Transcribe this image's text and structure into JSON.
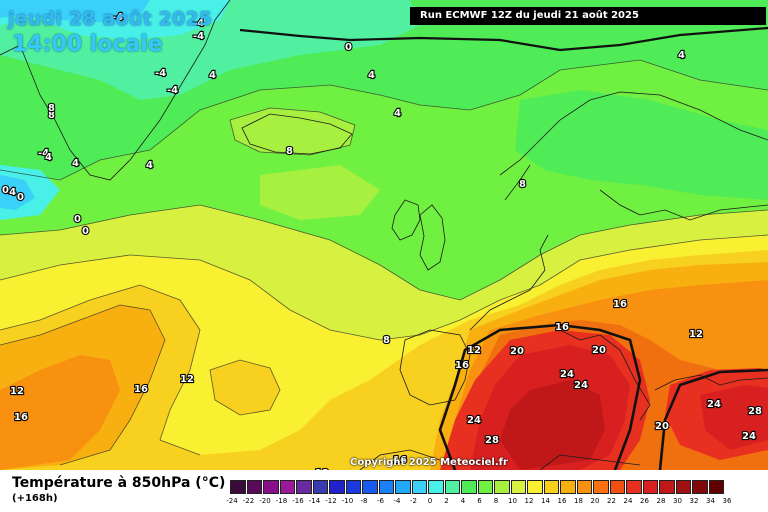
{
  "header": {
    "date_line": "jeudi 28 août 2025",
    "time_line": "14:00 locale",
    "run_info": "Run ECMWF 12Z du jeudi 21 août 2025"
  },
  "footer": {
    "copyright": "Copyright 2025 Meteociel.fr",
    "legend_title": "Température à 850hPa (°C)",
    "legend_subtitle": "(+168h)"
  },
  "legend": {
    "labels": [
      "-24",
      "-22",
      "-20",
      "-18",
      "-16",
      "-14",
      "-12",
      "-10",
      "-8",
      "-6",
      "-4",
      "-2",
      "0",
      "2",
      "4",
      "6",
      "8",
      "10",
      "12",
      "14",
      "16",
      "18",
      "20",
      "22",
      "24",
      "26",
      "28",
      "30",
      "32",
      "34",
      "36"
    ],
    "colors": [
      "#3a0a3a",
      "#5a0a5a",
      "#8a0f8a",
      "#9a1a9a",
      "#6a2aa0",
      "#3a3ab0",
      "#2222c8",
      "#1a3ae0",
      "#1a5af0",
      "#1a80f8",
      "#22a8f8",
      "#3ad0f8",
      "#48f0e8",
      "#50f0a0",
      "#50ec58",
      "#70f040",
      "#a8f040",
      "#d8f040",
      "#f8f030",
      "#f8d020",
      "#f8b010",
      "#f89010",
      "#f87010",
      "#f05010",
      "#e83020",
      "#d82020",
      "#c01818",
      "#a01010",
      "#800808",
      "#600000"
    ]
  },
  "map": {
    "isotherm_labels": [
      {
        "text": "-4"
      },
      {
        "text": "-4"
      },
      {
        "text": "-4"
      },
      {
        "text": "-4"
      },
      {
        "text": "-4"
      },
      {
        "text": "-4"
      },
      {
        "text": "-4"
      },
      {
        "text": "0"
      },
      {
        "text": "0"
      },
      {
        "text": "0"
      },
      {
        "text": "0"
      },
      {
        "text": "0"
      },
      {
        "text": "4"
      },
      {
        "text": "4"
      },
      {
        "text": "4"
      },
      {
        "text": "4"
      },
      {
        "text": "4"
      },
      {
        "text": "4"
      },
      {
        "text": "4"
      },
      {
        "text": "8"
      },
      {
        "text": "8"
      },
      {
        "text": "8"
      },
      {
        "text": "8"
      },
      {
        "text": "8"
      },
      {
        "text": "12"
      },
      {
        "text": "12"
      },
      {
        "text": "12"
      },
      {
        "text": "12"
      },
      {
        "text": "12"
      },
      {
        "text": "16"
      },
      {
        "text": "16"
      },
      {
        "text": "16"
      },
      {
        "text": "16"
      },
      {
        "text": "16"
      },
      {
        "text": "16"
      },
      {
        "text": "20"
      },
      {
        "text": "20"
      },
      {
        "text": "20"
      },
      {
        "text": "24"
      },
      {
        "text": "24"
      },
      {
        "text": "24"
      },
      {
        "text": "24"
      },
      {
        "text": "24"
      },
      {
        "text": "28"
      },
      {
        "text": "28"
      }
    ]
  }
}
